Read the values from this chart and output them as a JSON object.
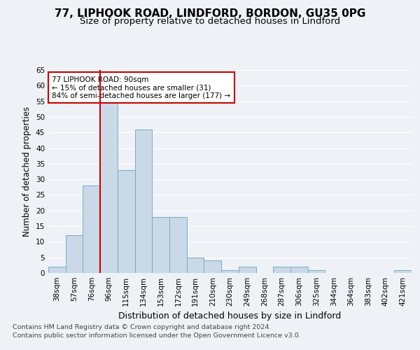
{
  "title1": "77, LIPHOOK ROAD, LINDFORD, BORDON, GU35 0PG",
  "title2": "Size of property relative to detached houses in Lindford",
  "xlabel": "Distribution of detached houses by size in Lindford",
  "ylabel": "Number of detached properties",
  "categories": [
    "38sqm",
    "57sqm",
    "76sqm",
    "96sqm",
    "115sqm",
    "134sqm",
    "153sqm",
    "172sqm",
    "191sqm",
    "210sqm",
    "230sqm",
    "249sqm",
    "268sqm",
    "287sqm",
    "306sqm",
    "325sqm",
    "344sqm",
    "364sqm",
    "383sqm",
    "402sqm",
    "421sqm"
  ],
  "values": [
    2,
    12,
    28,
    55,
    33,
    46,
    18,
    18,
    5,
    4,
    1,
    2,
    0,
    2,
    2,
    1,
    0,
    0,
    0,
    0,
    1
  ],
  "bar_color": "#c9d9e8",
  "bar_edge_color": "#7aaac8",
  "vline_color": "#cc0000",
  "vline_x_idx": 3,
  "annotation_text": "77 LIPHOOK ROAD: 90sqm\n← 15% of detached houses are smaller (31)\n84% of semi-detached houses are larger (177) →",
  "annotation_box_color": "#ffffff",
  "annotation_box_edge": "#cc0000",
  "ylim": [
    0,
    65
  ],
  "yticks": [
    0,
    5,
    10,
    15,
    20,
    25,
    30,
    35,
    40,
    45,
    50,
    55,
    60,
    65
  ],
  "footnote1": "Contains HM Land Registry data © Crown copyright and database right 2024.",
  "footnote2": "Contains public sector information licensed under the Open Government Licence v3.0.",
  "bg_color": "#eef2f7",
  "plot_bg_color": "#eef2f7",
  "title1_fontsize": 11,
  "title2_fontsize": 9.5,
  "xlabel_fontsize": 9,
  "ylabel_fontsize": 8.5,
  "tick_fontsize": 7.5,
  "footnote_fontsize": 6.8,
  "grid_color": "#ffffff"
}
